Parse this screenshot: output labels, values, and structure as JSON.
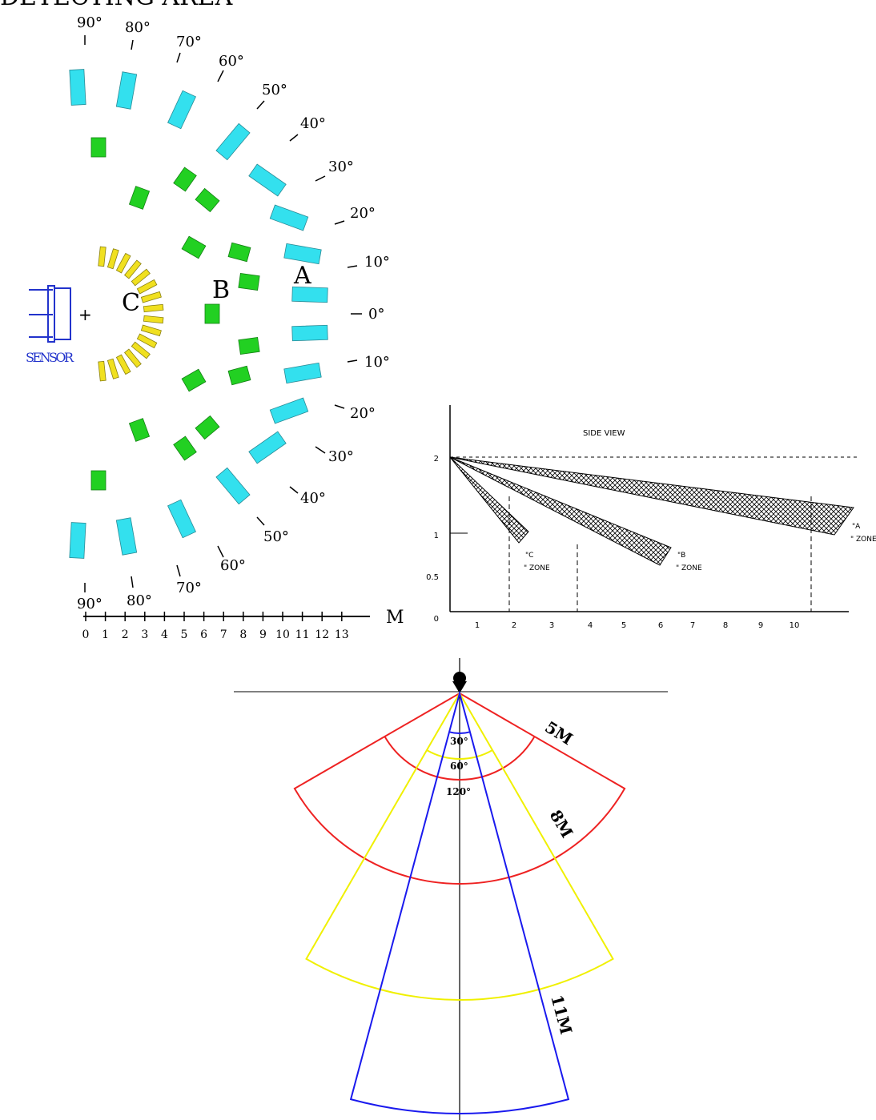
{
  "top_view": {
    "clipped_header": "DETECTING AREA",
    "angle_labels_top": [
      "90°",
      "80°",
      "70°",
      "60°",
      "50°",
      "40°",
      "30°",
      "20°",
      "10°"
    ],
    "center_label": "0°",
    "angle_labels_bottom": [
      "10°",
      "20°",
      "30°",
      "40°",
      "50°",
      "60°",
      "70°",
      "80°",
      "90°"
    ],
    "zone_labels": {
      "A": "A",
      "B": "B",
      "C": "C"
    },
    "sensor_label": "SENSOR",
    "sensor_mark": "+",
    "axis_ticks": [
      "0",
      "1",
      "2",
      "3",
      "4",
      "5",
      "6",
      "7",
      "8",
      "9",
      "10",
      "11",
      "12",
      "13"
    ],
    "axis_unit": "M",
    "colors": {
      "zone_a": "#33e0ee",
      "zone_b": "#22d022",
      "zone_c": "#f0e020",
      "sensor": "#2233cc"
    }
  },
  "side_view": {
    "title": "SIDE VIEW",
    "y_ticks": [
      "2",
      "1",
      "0.5",
      "0"
    ],
    "x_ticks": [
      "1",
      "2",
      "3",
      "4",
      "5",
      "6",
      "7",
      "8",
      "9",
      "10"
    ],
    "zone_labels": [
      {
        "id": "C",
        "line1": "\"C",
        "line2": "\" ZONE"
      },
      {
        "id": "B",
        "line1": "\"B",
        "line2": "\" ZONE"
      },
      {
        "id": "A",
        "line1": "\"A",
        "line2": "\" ZONE"
      }
    ]
  },
  "cone_view": {
    "angle_labels": [
      "30°",
      "60°",
      "120°"
    ],
    "range_labels": [
      "5M",
      "8M",
      "11M"
    ],
    "colors": {
      "wide_120": "#ee2222",
      "mid_60": "#f0f000",
      "narrow_30": "#1a1aee",
      "guide": "#000000"
    }
  }
}
